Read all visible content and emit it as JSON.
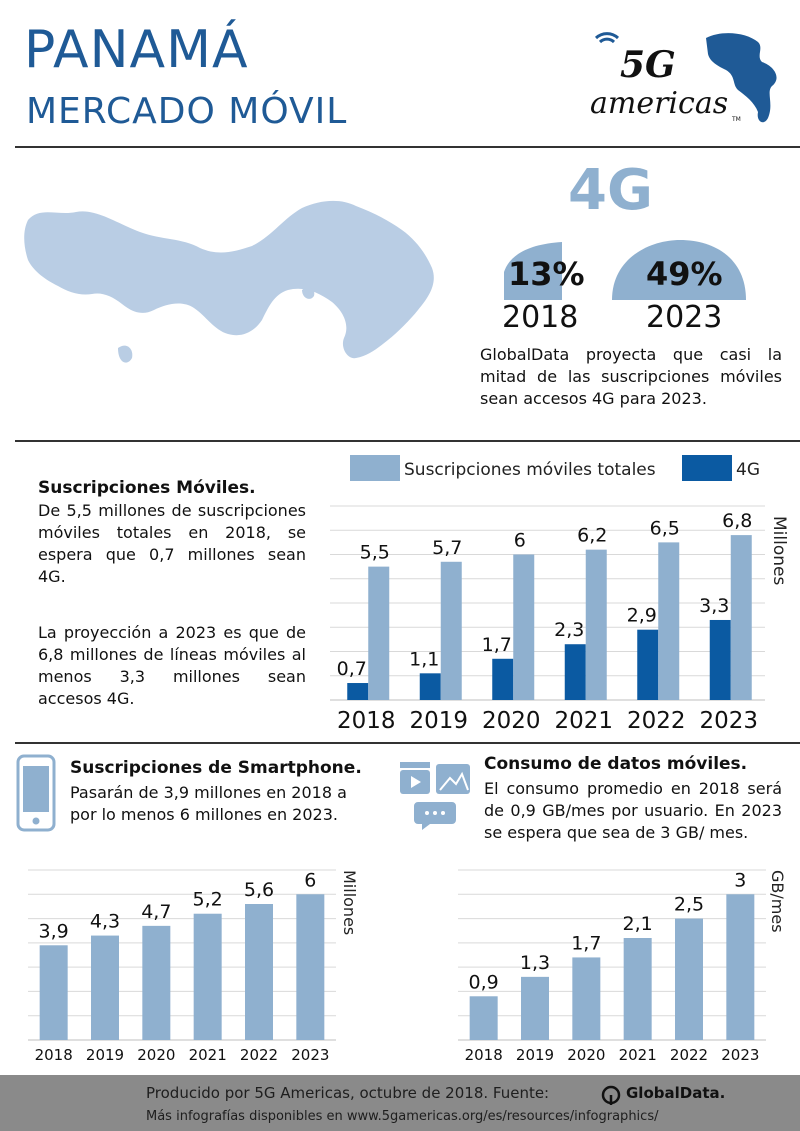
{
  "header": {
    "title_line1": "PANAMÁ",
    "title_line2": "MERCADO MÓVIL",
    "logo_text_top": "5G",
    "logo_text_bottom": "americas",
    "logo_tm": "TM"
  },
  "colors": {
    "brand_blue": "#1f5a96",
    "light_blue": "#8fb0cf",
    "dark_blue": "#0b5aa2",
    "footer_gray": "#8a8a8a"
  },
  "fourg": {
    "label": "4G",
    "stats": [
      {
        "percent": "13%",
        "year": "2018",
        "fraction": 0.13
      },
      {
        "percent": "49%",
        "year": "2023",
        "fraction": 0.49
      }
    ],
    "description": "GlobalData proyecta que casi la mitad de las suscripciones móviles sean accesos 4G para 2023."
  },
  "subscriptions": {
    "title": "Suscripciones Móviles.",
    "paragraph1": "De 5,5 millones de suscripciones móviles totales en 2018, se espera que 0,7 millones sean 4G.",
    "paragraph2": "La proyección a 2023 es que de 6,8 millones de líneas móviles al menos 3,3 millones sean accesos 4G."
  },
  "smartphone": {
    "title": "Suscripciones de Smartphone.",
    "description": "Pasarán de 3,9 millones en 2018 a por lo menos 6 millones en 2023."
  },
  "data_consumption": {
    "title": "Consumo de datos móviles.",
    "description": "El consumo promedio en 2018 será de 0,9 GB/mes por usuario. En 2023 se espera que sea de 3 GB/ mes."
  },
  "chart_data": [
    {
      "type": "bar",
      "categories": [
        "2018",
        "2019",
        "2020",
        "2021",
        "2022",
        "2023"
      ],
      "series": [
        {
          "name": "Suscripciones móviles totales",
          "values": [
            5.5,
            5.7,
            6,
            6.2,
            6.5,
            6.8
          ],
          "labels": [
            "5,5",
            "5,7",
            "6",
            "6,2",
            "6,5",
            "6,8"
          ],
          "color": "#8fb0cf"
        },
        {
          "name": "4G",
          "values": [
            0.7,
            1.1,
            1.7,
            2.3,
            2.9,
            3.3
          ],
          "labels": [
            "0,7",
            "1,1",
            "1,7",
            "2,3",
            "2,9",
            "3,3"
          ],
          "color": "#0b5aa2"
        }
      ],
      "ylabel": "Millones",
      "ylim": [
        0,
        8
      ],
      "grid": true,
      "legend": "top"
    },
    {
      "type": "bar",
      "categories": [
        "2018",
        "2019",
        "2020",
        "2021",
        "2022",
        "2023"
      ],
      "values": [
        3.9,
        4.3,
        4.7,
        5.2,
        5.6,
        6
      ],
      "labels": [
        "3,9",
        "4,3",
        "4,7",
        "5,2",
        "5,6",
        "6"
      ],
      "ylabel": "Millones",
      "ylim": [
        0,
        7
      ],
      "grid": true
    },
    {
      "type": "bar",
      "categories": [
        "2018",
        "2019",
        "2020",
        "2021",
        "2022",
        "2023"
      ],
      "values": [
        0.9,
        1.3,
        1.7,
        2.1,
        2.5,
        3
      ],
      "labels": [
        "0,9",
        "1,3",
        "1,7",
        "2,1",
        "2,5",
        "3"
      ],
      "ylabel": "GB/mes",
      "ylim": [
        0,
        3.5
      ],
      "grid": true
    }
  ],
  "footer": {
    "line1": "Producido por 5G Americas, octubre de 2018. Fuente:",
    "source_logo": "GlobalData.",
    "line2": "Más infografías disponibles en www.5gamericas.org/es/resources/infographics/"
  }
}
